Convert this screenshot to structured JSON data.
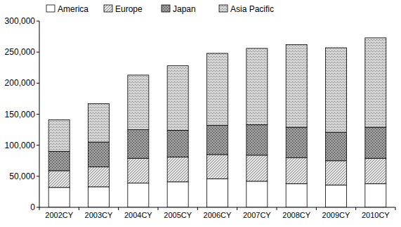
{
  "chart_data": {
    "type": "bar",
    "stacked": true,
    "legend": "top",
    "grid": false,
    "categories": [
      "2002CY",
      "2003CY",
      "2004CY",
      "2005CY",
      "2006CY",
      "2007CY",
      "2008CY",
      "2009CY",
      "2010CY"
    ],
    "series": [
      {
        "name": "America",
        "color": "#ffffff",
        "values": [
          32000,
          33000,
          39000,
          41000,
          46000,
          42000,
          38000,
          36000,
          38000
        ]
      },
      {
        "name": "Europe",
        "color": "#e8e8e8",
        "values": [
          27000,
          32000,
          40000,
          40000,
          39000,
          42000,
          42000,
          39000,
          41000
        ]
      },
      {
        "name": "Japan",
        "color": "#9a9a9a",
        "values": [
          31000,
          40000,
          46000,
          43000,
          47000,
          49000,
          49000,
          46000,
          50000
        ]
      },
      {
        "name": "Asia Pacific",
        "color": "#d4d4d4",
        "values": [
          51000,
          62000,
          88000,
          104000,
          116000,
          123000,
          133000,
          136000,
          144000
        ]
      }
    ],
    "ylim": [
      0,
      300000
    ],
    "yticks": [
      0,
      {
        "value": 50000,
        "label": "50,000"
      },
      {
        "value": 100000,
        "label": "100,000"
      },
      {
        "value": 150000,
        "label": "150,000"
      },
      {
        "value": 200000,
        "label": "200,000"
      },
      {
        "value": 250000,
        "label": "250,000"
      },
      {
        "value": 300000,
        "label": "300,000"
      }
    ]
  }
}
